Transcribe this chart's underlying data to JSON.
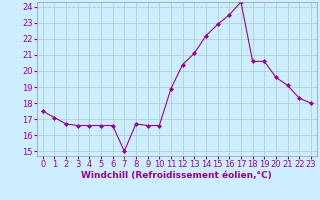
{
  "x": [
    0,
    1,
    2,
    3,
    4,
    5,
    6,
    7,
    8,
    9,
    10,
    11,
    12,
    13,
    14,
    15,
    16,
    17,
    18,
    19,
    20,
    21,
    22,
    23
  ],
  "y": [
    17.5,
    17.1,
    16.7,
    16.6,
    16.6,
    16.6,
    16.6,
    15.0,
    16.7,
    16.6,
    16.6,
    18.9,
    20.4,
    21.1,
    22.2,
    22.9,
    23.5,
    24.3,
    20.6,
    20.6,
    19.6,
    19.1,
    18.3,
    18.0
  ],
  "line_color": "#990099",
  "marker": "D",
  "marker_size": 2,
  "bg_color": "#cceeff",
  "grid_color": "#aacccc",
  "xlabel": "Windchill (Refroidissement éolien,°C)",
  "xlabel_color": "#990099",
  "tick_color": "#990099",
  "spine_color": "#999999",
  "ylim_min": 14.7,
  "ylim_max": 24.3,
  "yticks": [
    15,
    16,
    17,
    18,
    19,
    20,
    21,
    22,
    23,
    24
  ],
  "xticks": [
    0,
    1,
    2,
    3,
    4,
    5,
    6,
    7,
    8,
    9,
    10,
    11,
    12,
    13,
    14,
    15,
    16,
    17,
    18,
    19,
    20,
    21,
    22,
    23
  ],
  "tick_fontsize": 6,
  "xlabel_fontsize": 6.5
}
